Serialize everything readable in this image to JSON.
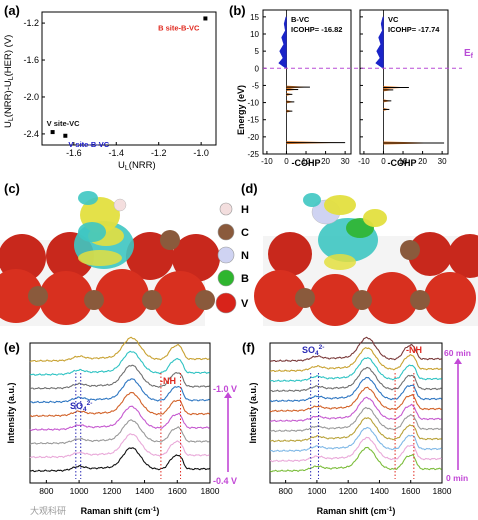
{
  "panels": {
    "a": {
      "label": "(a)",
      "xlabel_main": "U",
      "xlabel_sub": "L",
      "xlabel_tail": "(NRR)",
      "ylabel_main": "U",
      "ylabel_parts": [
        "U",
        "L",
        "(NRR)-U",
        "L",
        "(HER) (V)"
      ],
      "xticks": [
        "-1.6",
        "-1.4",
        "-1.2",
        "-1.0"
      ],
      "yticks": [
        "-1.2",
        "-1.6",
        "-2.0",
        "-2.4"
      ],
      "xlim": [
        -1.75,
        -0.93
      ],
      "ylim": [
        -2.52,
        -1.08
      ],
      "points": [
        {
          "x": -1.7,
          "y": -2.38,
          "label": "V site-VC",
          "color": "#111111"
        },
        {
          "x": -1.64,
          "y": -2.42,
          "label": "V site-B-VC",
          "color": "#1c1ccc"
        },
        {
          "x": -0.98,
          "y": -1.15,
          "label": "B site-B-VC",
          "color": "#e0281e"
        }
      ]
    },
    "b": {
      "label": "(b)",
      "ylabel": "Energy (eV)",
      "xlabel": "-COHP",
      "yticks": [
        "15",
        "10",
        "5",
        "0",
        "-5",
        "-10",
        "-15",
        "-20",
        "-25"
      ],
      "xticks": [
        "-10",
        "0",
        "10",
        "20",
        "30"
      ],
      "ylim": [
        -25,
        17
      ],
      "xlim": [
        -12,
        33
      ],
      "fermi_label": "E",
      "fermi_sub": "f",
      "subpanels": [
        {
          "name": "B-VC",
          "icohp": "ICOHP= -16.82",
          "spikes": [
            [
              -5.5,
              12
            ],
            [
              -6.2,
              6
            ],
            [
              -7.6,
              3
            ],
            [
              -9.8,
              4
            ],
            [
              -12.5,
              3
            ],
            [
              -21.7,
              30
            ]
          ]
        },
        {
          "name": "VC",
          "icohp": "ICOHP= -17.74",
          "spikes": [
            [
              -5.6,
              13
            ],
            [
              -6.3,
              5
            ],
            [
              -9.5,
              4
            ],
            [
              -12.0,
              3
            ],
            [
              -21.8,
              31
            ]
          ]
        }
      ]
    },
    "c": {
      "label": "(c)"
    },
    "d": {
      "label": "(d)"
    },
    "legend": {
      "items": [
        {
          "symbol": "H",
          "color": "#f3dede"
        },
        {
          "symbol": "C",
          "color": "#8a5a3c"
        },
        {
          "symbol": "N",
          "color": "#cfd3f2"
        },
        {
          "symbol": "B",
          "color": "#2fb52f"
        },
        {
          "symbol": "V",
          "color": "#d8231a"
        }
      ]
    },
    "e": {
      "label": "(e)",
      "ylabel": "Intensity (a.u.)",
      "xlabel": "Raman shift (cm",
      "xlabel_sup": "-1",
      "xlabel_tail": ")",
      "xticks": [
        "800",
        "1000",
        "1200",
        "1400",
        "1600",
        "1800"
      ],
      "xlim": [
        700,
        1800
      ],
      "so4_label": "SO",
      "so4_sub": "4",
      "so4_sup": "2-",
      "nh_label": "-NH",
      "top_label": "-1.0 V",
      "bottom_label": "-0.4 V",
      "colors": [
        "#c8a232",
        "#2fc3c3",
        "#707070",
        "#2f77c2",
        "#d2632a",
        "#c65bd0",
        "#9a9a9a",
        "#e9a9d9",
        "#111111"
      ]
    },
    "f": {
      "label": "(f)",
      "ylabel": "Intensity (a.u.)",
      "xlabel": "Raman shift (cm",
      "xlabel_sup": "-1",
      "xlabel_tail": ")",
      "xticks": [
        "800",
        "1000",
        "1200",
        "1400",
        "1600",
        "1800"
      ],
      "xlim": [
        700,
        1800
      ],
      "so4_label": "SO",
      "so4_sub": "4",
      "so4_sup": "2-",
      "nh_label": "-NH",
      "top_label": "60 min",
      "bottom_label": "0 min",
      "colors": [
        "#7a3a3a",
        "#c8a232",
        "#2fc3c3",
        "#707070",
        "#2f77c2",
        "#d2632a",
        "#c65bd0",
        "#9a9a9a",
        "#b8a23a",
        "#7fb8e6",
        "#e9a9d9",
        "#7cbd3c"
      ]
    }
  },
  "watermark": "大观科研"
}
